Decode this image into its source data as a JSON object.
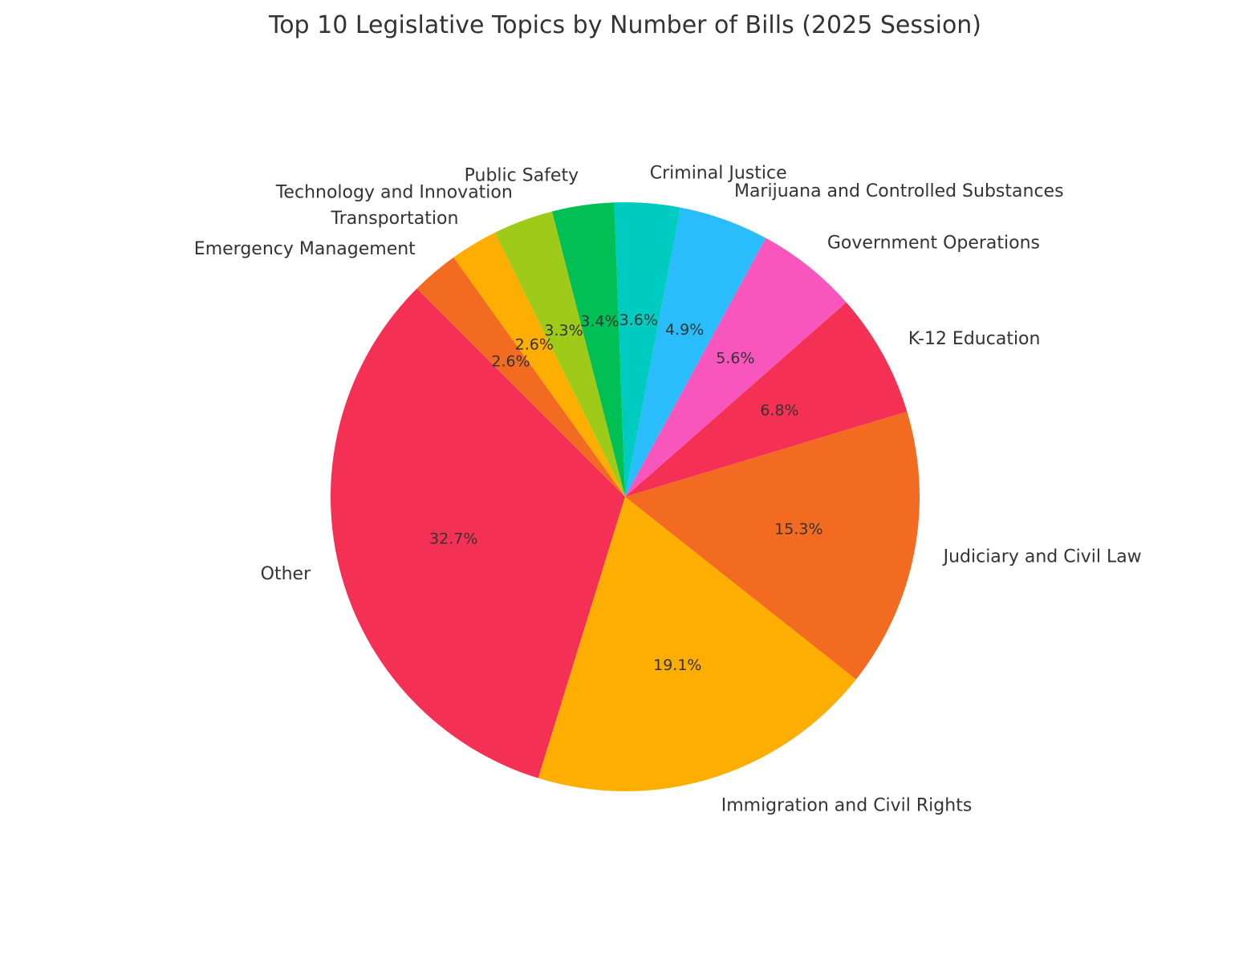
{
  "chart_data": {
    "type": "pie",
    "title": "Top 10 Legislative Topics by Number of Bills (2025 Session)",
    "start_angle_deg": 135,
    "direction": "counterclockwise",
    "slices": [
      {
        "label": "Other",
        "percent": 32.7,
        "percent_label": "32.7%",
        "color": "#f43155"
      },
      {
        "label": "Immigration and Civil Rights",
        "percent": 19.1,
        "percent_label": "19.1%",
        "color": "#fdae00"
      },
      {
        "label": "Judiciary and Civil Law",
        "percent": 15.3,
        "percent_label": "15.3%",
        "color": "#f26b21"
      },
      {
        "label": "K-12 Education",
        "percent": 6.8,
        "percent_label": "6.8%",
        "color": "#f43155"
      },
      {
        "label": "Government Operations",
        "percent": 5.6,
        "percent_label": "5.6%",
        "color": "#f956bd"
      },
      {
        "label": "Marijuana and Controlled Substances",
        "percent": 4.9,
        "percent_label": "4.9%",
        "color": "#29bdfd"
      },
      {
        "label": "Criminal Justice",
        "percent": 3.6,
        "percent_label": "3.6%",
        "color": "#00cbc0"
      },
      {
        "label": "Public Safety",
        "percent": 3.4,
        "percent_label": "3.4%",
        "color": "#00c055"
      },
      {
        "label": "Technology and Innovation",
        "percent": 3.3,
        "percent_label": "3.3%",
        "color": "#9ecb1a"
      },
      {
        "label": "Transportation",
        "percent": 2.6,
        "percent_label": "2.6%",
        "color": "#fdae00"
      },
      {
        "label": "Emergency Management",
        "percent": 2.6,
        "percent_label": "2.6%",
        "color": "#f26b21"
      }
    ]
  }
}
